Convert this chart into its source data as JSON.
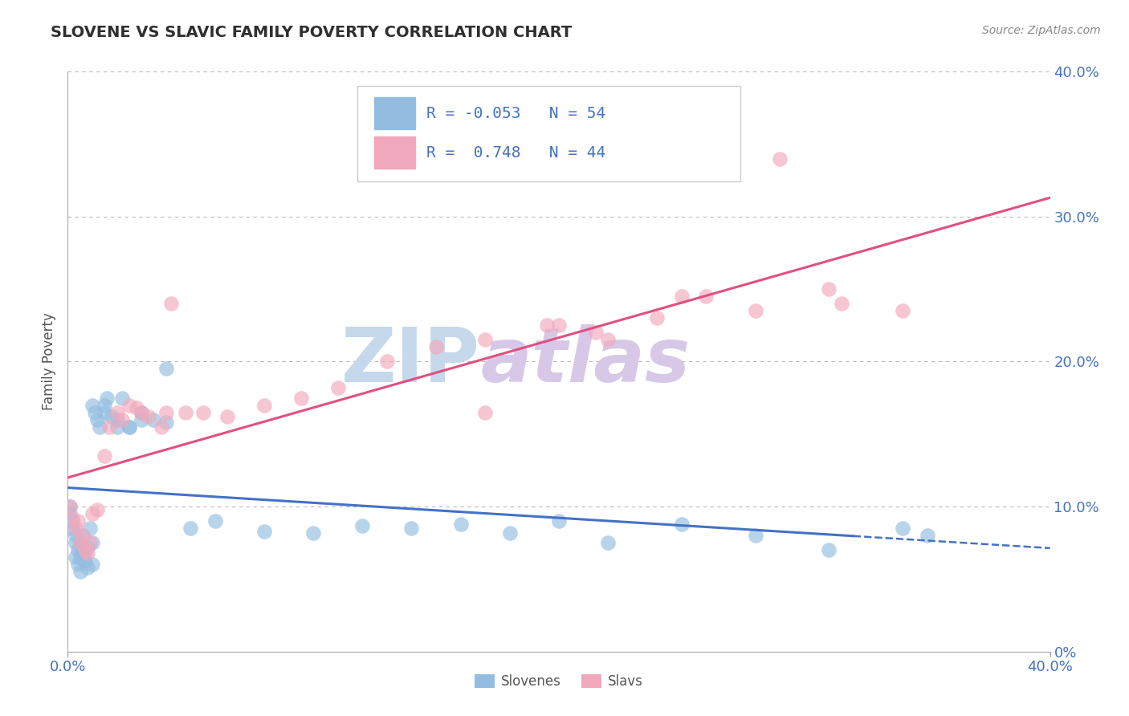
{
  "title": "SLOVENE VS SLAVIC FAMILY POVERTY CORRELATION CHART",
  "source": "Source: ZipAtlas.com",
  "ylabel": "Family Poverty",
  "y_tick_labels": [
    "0%",
    "10.0%",
    "20.0%",
    "30.0%",
    "40.0%"
  ],
  "y_tick_positions": [
    0.0,
    0.1,
    0.2,
    0.3,
    0.4
  ],
  "x_lim": [
    0.0,
    0.4
  ],
  "y_lim": [
    0.0,
    0.4
  ],
  "slovenes_R": -0.053,
  "slovenes_N": 54,
  "slavs_R": 0.748,
  "slavs_N": 44,
  "slovene_color": "#92BDE0",
  "slav_color": "#F2A8BC",
  "slovene_line_color": "#4472C4",
  "slav_line_color": "#E05080",
  "legend_text_color": "#4472C4",
  "watermark_zip_color": "#C5D8EC",
  "watermark_atlas_color": "#D8C8E8",
  "background_color": "#FFFFFF",
  "grid_color": "#BBBBBB",
  "title_color": "#2F2F2F",
  "axis_tick_color": "#4472C4",
  "ylabel_color": "#555555",
  "source_color": "#888888"
}
